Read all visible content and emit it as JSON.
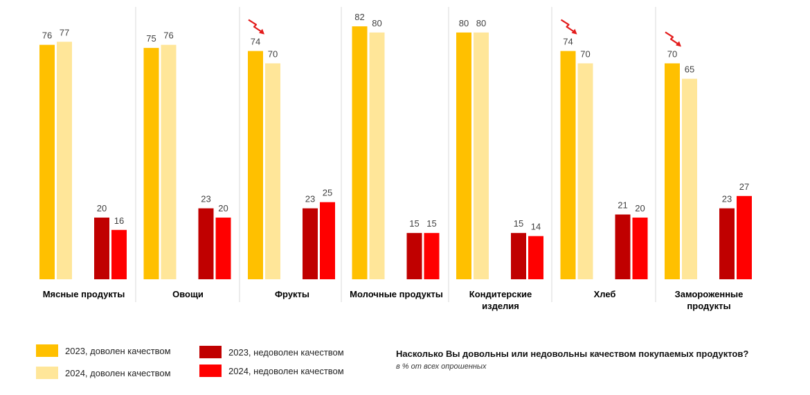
{
  "colors": {
    "s2023_satisfied": "#ffc000",
    "s2024_satisfied": "#ffe699",
    "s2023_unsatisfied": "#c00000",
    "s2024_unsatisfied": "#ff0000",
    "arrow": "#e31b1b"
  },
  "chart_data": {
    "type": "bar",
    "categories": [
      "Мясные продукты",
      "Овощи",
      "Фрукты",
      "Молочные продукты",
      "Кондитерские изделия",
      "Хлеб",
      "Замороженные продукты"
    ],
    "series": [
      {
        "name": "2023, доволен качеством",
        "values": [
          76,
          75,
          74,
          82,
          80,
          74,
          70
        ]
      },
      {
        "name": "2024, доволен качеством",
        "values": [
          77,
          76,
          70,
          80,
          80,
          70,
          65
        ]
      },
      {
        "name": "2023, недоволен качеством",
        "values": [
          20,
          23,
          23,
          15,
          15,
          21,
          23
        ]
      },
      {
        "name": "2024, недоволен качеством",
        "values": [
          16,
          20,
          25,
          15,
          14,
          20,
          27
        ]
      }
    ],
    "decline_marked": [
      false,
      false,
      true,
      false,
      false,
      true,
      true
    ],
    "ylim": [
      0,
      82
    ],
    "legend": "bottom-left",
    "grid": false
  },
  "legend": {
    "s1": "2023, доволен качеством",
    "s2": "2024, доволен качеством",
    "s3": "2023, недоволен качеством",
    "s4": "2024, недоволен качеством"
  },
  "footer": {
    "question": "Насколько Вы довольны или недовольны качеством покупаемых продуктов?",
    "note": "в % от всех опрошенных"
  }
}
